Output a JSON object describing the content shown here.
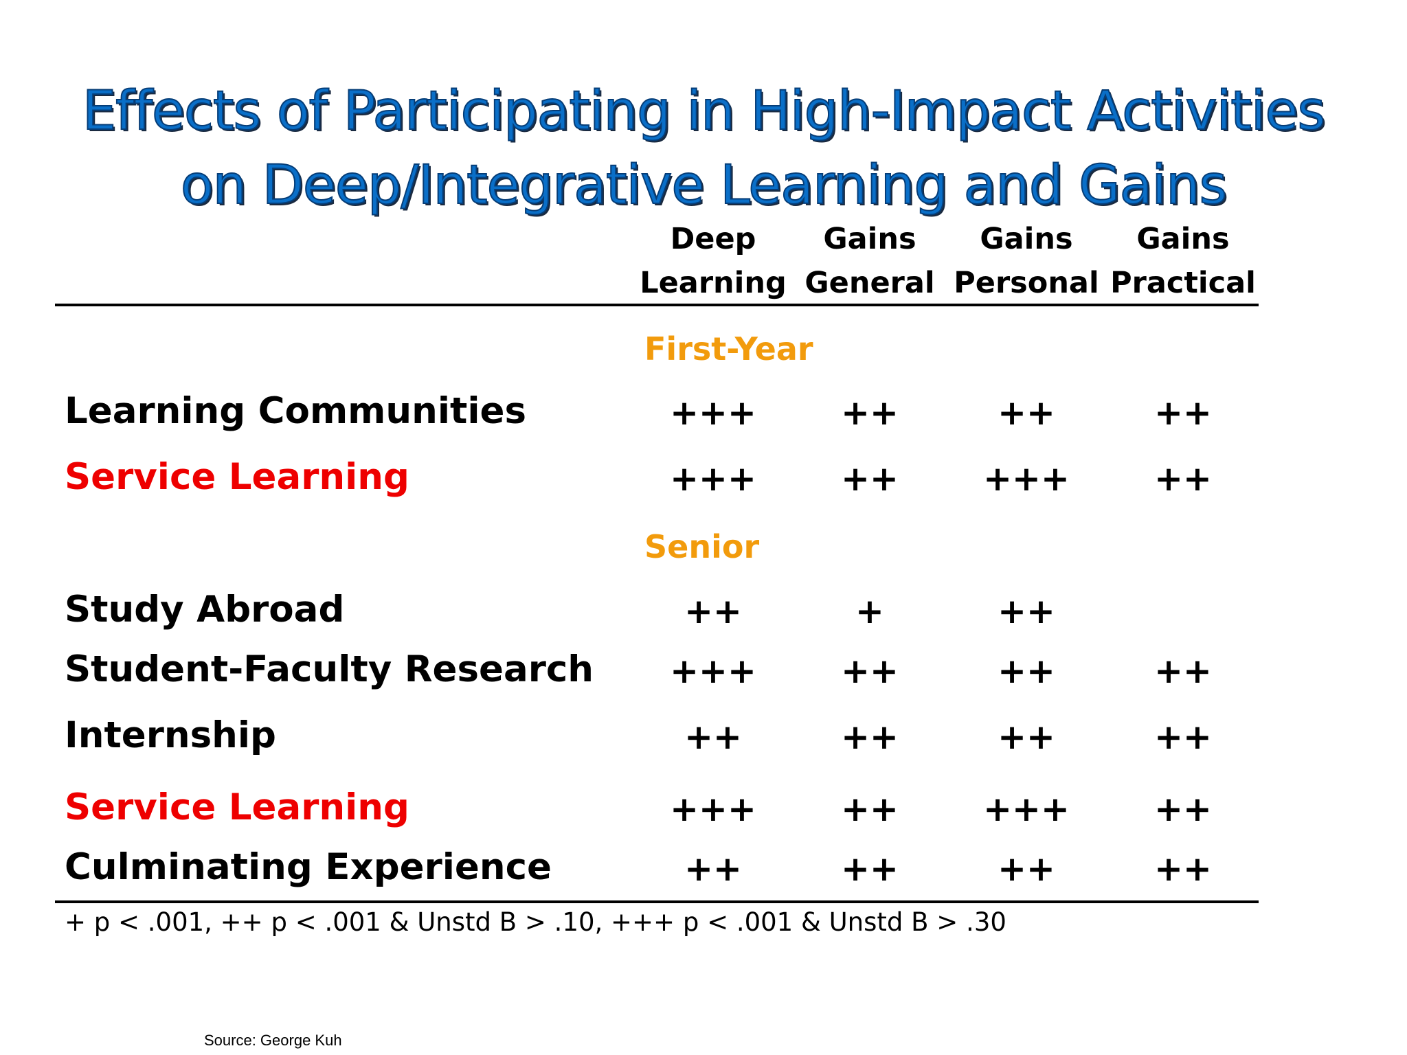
{
  "title": {
    "line1": "Effects of Participating in High-Impact Activities",
    "line2": "on Deep/Integrative Learning and Gains"
  },
  "columns": [
    {
      "line1": "Deep",
      "line2": "Learning"
    },
    {
      "line1": "Gains",
      "line2": "General"
    },
    {
      "line1": "Gains",
      "line2": "Personal"
    },
    {
      "line1": "Gains",
      "line2": "Practical"
    }
  ],
  "sections": {
    "first_year": "First-Year",
    "senior": "Senior"
  },
  "rows": [
    {
      "label": "Learning Communities",
      "highlight": false,
      "values": [
        "+++",
        "++",
        "++",
        "++"
      ]
    },
    {
      "label": "Service Learning",
      "highlight": true,
      "values": [
        "+++",
        "++",
        "+++",
        "++"
      ]
    },
    {
      "label": "Study Abroad",
      "highlight": false,
      "values": [
        "++",
        "+",
        "++",
        ""
      ]
    },
    {
      "label": "Student-Faculty Research",
      "highlight": false,
      "values": [
        "+++",
        "++",
        "++",
        "++"
      ]
    },
    {
      "label": "Internship",
      "highlight": false,
      "values": [
        "++",
        "++",
        "++",
        "++"
      ]
    },
    {
      "label": "Service Learning",
      "highlight": true,
      "values": [
        "+++",
        "++",
        "+++",
        "++"
      ]
    },
    {
      "label": "Culminating Experience",
      "highlight": false,
      "values": [
        "++",
        "++",
        "++",
        "++"
      ]
    }
  ],
  "footnote": "+ p < .001, ++ p < .001 & Unstd B > .10, +++ p < .001 & Unstd B > .30",
  "source": "Source: George Kuh",
  "colors": {
    "title": "#0a6fc8",
    "section": "#f29b0c",
    "highlight": "#ee0000"
  }
}
